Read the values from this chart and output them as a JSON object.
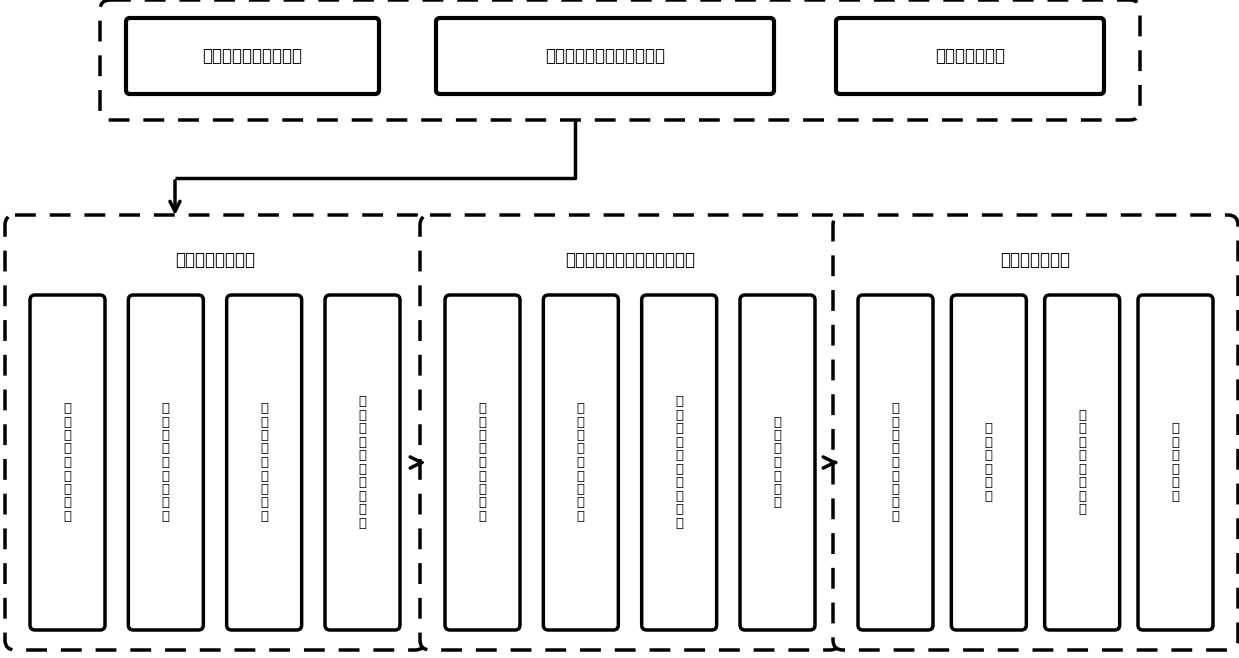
{
  "top_boxes": [
    "资料、数据的收集分析",
    "实验样区的选择与野外调查",
    "实验数据预处理"
  ],
  "mid_titles": [
    "梯田候选区的提取",
    "基于区域生长的正负地形分割",
    "梯田范围精细化"
  ],
  "col1_items": [
    "梯田空间域特征分析",
    "梯田频率域特征分析",
    "分析窗口及参数选取",
    "傅里叶变换及参数计算"
  ],
  "col2_items": [
    "坡面嵎变邻域法提取",
    "区域最大值点的提取",
    "区域生长法提取正地形",
    "正地形边界修正"
  ],
  "col3_items": [
    "保留正地形内的梯田",
    "梯田孔洞填充",
    "梯田碎碎板块去除",
    "梯田边界平滑"
  ],
  "bg_color": "#ffffff",
  "box_fill": "#ffffff",
  "box_edge": "#000000"
}
